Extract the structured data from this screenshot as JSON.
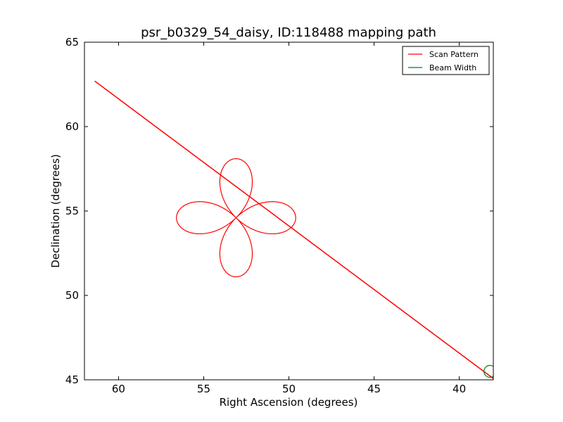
{
  "chart_data": {
    "type": "line",
    "title": "psr_b0329_54_daisy, ID:118488 mapping path",
    "xlabel": "Right Ascension (degrees)",
    "ylabel": "Declination (degrees)",
    "xlim": [
      62,
      38
    ],
    "ylim": [
      45,
      65
    ],
    "x_inverted": true,
    "xticks": [
      60,
      55,
      50,
      45,
      40
    ],
    "yticks": [
      45,
      50,
      55,
      60,
      65
    ],
    "grid": false,
    "legend_position": "top-right",
    "series": [
      {
        "name": "Scan Pattern",
        "color": "#ff0000",
        "kind": "slew-and-daisy",
        "slew_path": [
          [
            61.4,
            62.7
          ],
          [
            37.9,
            45.0
          ]
        ],
        "daisy_center": [
          53.1,
          54.6
        ],
        "daisy_radius": 3.5,
        "daisy_petals": 4,
        "daisy_start": [
          56.7,
          54.6
        ]
      },
      {
        "name": "Beam Width",
        "color": "#008000",
        "kind": "circle",
        "center": [
          38.2,
          45.5
        ],
        "radius": 0.35
      }
    ]
  }
}
